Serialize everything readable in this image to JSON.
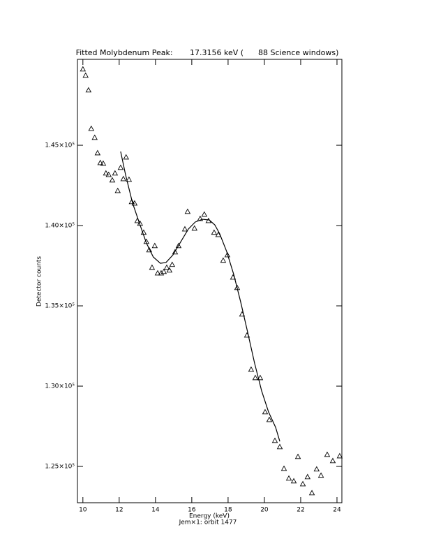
{
  "chart_data": {
    "type": "scatter",
    "title": "Fitted Molybdenum Peak:       17.3156 keV (      88 Science windows)",
    "x_label": "Energy (keV)",
    "subtitle": "Jem×1: orbit 1477",
    "y_label": "Detector counts",
    "xlim": [
      9.7,
      24.27
    ],
    "ylim": [
      122740,
      150350
    ],
    "xticks": [
      10,
      12,
      14,
      16,
      18,
      20,
      22,
      24
    ],
    "yticks": [
      {
        "value": 125000,
        "label": "1.25×10⁵"
      },
      {
        "value": 130000,
        "label": "1.30×10⁵"
      },
      {
        "value": 135000,
        "label": "1.35×10⁵"
      },
      {
        "value": 140000,
        "label": "1.40×10⁵"
      },
      {
        "value": 145000,
        "label": "1.45×10⁵"
      }
    ],
    "series": [
      {
        "style": "triangle",
        "color": "#000000",
        "x": [
          10.0,
          10.15,
          10.31,
          10.46,
          10.65,
          10.81,
          10.96,
          11.12,
          11.27,
          11.42,
          11.62,
          11.77,
          11.92,
          12.08,
          12.23,
          12.38,
          12.54,
          12.69,
          12.85,
          13.0,
          13.15,
          13.35,
          13.5,
          13.65,
          13.81,
          13.96,
          14.12,
          14.31,
          14.46,
          14.62,
          14.77,
          14.92,
          15.08,
          15.27,
          15.62,
          15.77,
          16.15,
          16.46,
          16.69,
          16.92,
          17.23,
          17.46,
          17.73,
          17.96,
          18.27,
          18.5,
          18.77,
          19.04,
          19.27,
          19.5,
          19.77,
          20.04,
          20.27,
          20.58,
          20.85,
          21.08,
          21.35,
          21.62,
          21.85,
          22.12,
          22.38,
          22.62,
          22.88,
          23.12,
          23.46,
          23.77,
          24.15
        ],
        "values": [
          149740,
          149350,
          148435,
          146040,
          145480,
          144520,
          143910,
          143870,
          143260,
          143170,
          142830,
          143260,
          142170,
          143610,
          142910,
          144260,
          142870,
          141480,
          141390,
          140300,
          140130,
          139570,
          139000,
          138480,
          137390,
          138740,
          137040,
          137040,
          137130,
          137390,
          137220,
          137570,
          138350,
          138740,
          139780,
          140870,
          139830,
          140430,
          140700,
          140300,
          139570,
          139430,
          137830,
          138170,
          136780,
          136130,
          134480,
          133170,
          131040,
          130520,
          130520,
          128390,
          127910,
          126610,
          126220,
          124870,
          124260,
          124090,
          125610,
          123910,
          124350,
          123350,
          124830,
          124440,
          125740,
          125350,
          125650
        ]
      },
      {
        "style": "line",
        "color": "#000000",
        "x": [
          12.08,
          12.35,
          12.73,
          13.12,
          13.5,
          13.88,
          14.27,
          14.58,
          14.96,
          15.42,
          15.81,
          16.19,
          16.58,
          16.96,
          17.27,
          17.54,
          17.92,
          18.31,
          18.69,
          19.08,
          19.46,
          19.85,
          20.23,
          20.62,
          20.85
        ],
        "values": [
          144610,
          143170,
          141430,
          140130,
          138910,
          138040,
          137650,
          137700,
          138170,
          139040,
          139780,
          140220,
          140390,
          140350,
          140040,
          139480,
          138390,
          136960,
          135260,
          133350,
          131430,
          129700,
          128390,
          127430,
          126560
        ]
      }
    ]
  }
}
